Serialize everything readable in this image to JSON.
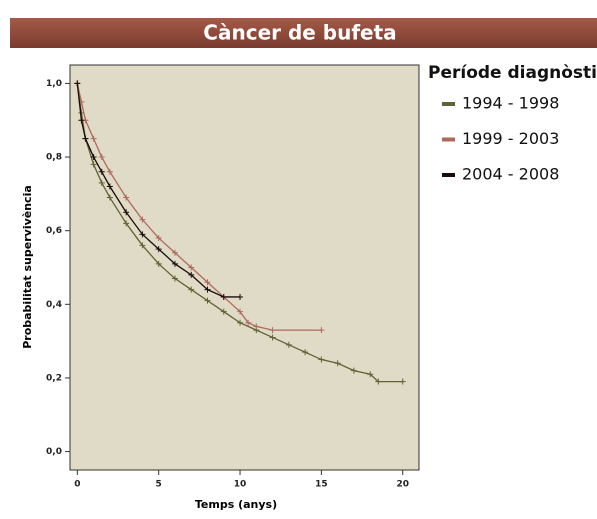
{
  "chart_data": {
    "type": "line",
    "title": "Càncer de bufeta",
    "xlabel": "Temps (anys)",
    "ylabel": "Probabilitat supervivència",
    "legend_title": "Període diagnòstic",
    "xlim": [
      -0.45,
      21
    ],
    "ylim": [
      -0.05,
      1.05
    ],
    "xticks": [
      0,
      5,
      10,
      15,
      20
    ],
    "yticks": [
      {
        "value": 0,
        "label": "0,0"
      },
      {
        "value": 0.2,
        "label": "0,2"
      },
      {
        "value": 0.4,
        "label": "0,4"
      },
      {
        "value": 0.6,
        "label": "0,6"
      },
      {
        "value": 0.8,
        "label": "0,8"
      },
      {
        "value": 1,
        "label": "1,0"
      }
    ],
    "series": [
      {
        "name": "1994 - 1998",
        "color": "#5f6232",
        "x": [
          0,
          0.25,
          0.5,
          1,
          1.5,
          2,
          3,
          4,
          5,
          6,
          7,
          8,
          9,
          10,
          11,
          12,
          13,
          14,
          15,
          16,
          17,
          18,
          18.5,
          20
        ],
        "values": [
          1.0,
          0.92,
          0.85,
          0.78,
          0.73,
          0.69,
          0.62,
          0.56,
          0.51,
          0.47,
          0.44,
          0.41,
          0.38,
          0.35,
          0.33,
          0.31,
          0.29,
          0.27,
          0.25,
          0.24,
          0.22,
          0.21,
          0.19,
          0.19
        ]
      },
      {
        "name": "1999 - 2003",
        "color": "#b0685e",
        "x": [
          0,
          0.25,
          0.5,
          1,
          1.5,
          2,
          3,
          4,
          5,
          6,
          7,
          8,
          9,
          10,
          10.5,
          11,
          12,
          15
        ],
        "values": [
          1.0,
          0.95,
          0.9,
          0.85,
          0.8,
          0.76,
          0.69,
          0.63,
          0.58,
          0.54,
          0.5,
          0.46,
          0.42,
          0.38,
          0.35,
          0.34,
          0.33,
          0.33
        ]
      },
      {
        "name": "2004 - 2008",
        "color": "#1a0a0a",
        "x": [
          0,
          0.25,
          0.5,
          1,
          1.5,
          2,
          3,
          4,
          5,
          6,
          7,
          8,
          9,
          10
        ],
        "values": [
          1.0,
          0.9,
          0.85,
          0.8,
          0.76,
          0.72,
          0.65,
          0.59,
          0.55,
          0.51,
          0.48,
          0.44,
          0.42,
          0.42
        ]
      }
    ]
  }
}
